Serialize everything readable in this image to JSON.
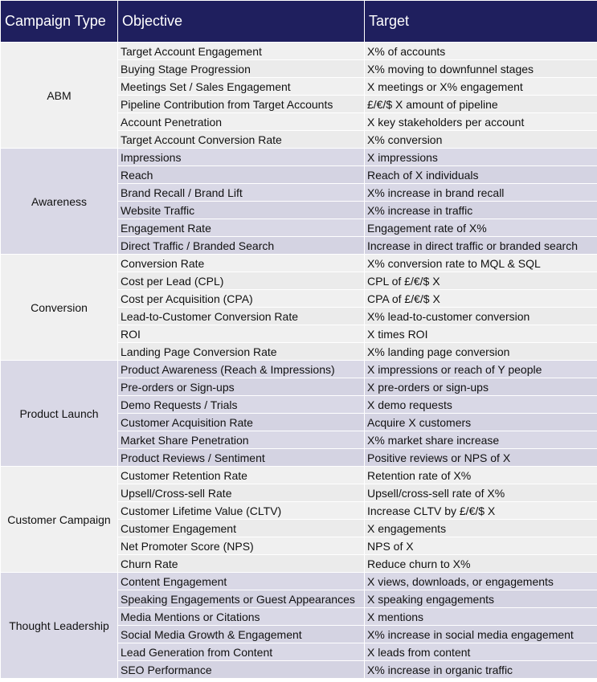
{
  "headers": {
    "type": "Campaign Type",
    "objective": "Objective",
    "target": "Target"
  },
  "groups": [
    {
      "type": "ABM",
      "rows": [
        {
          "objective": "Target Account Engagement",
          "target": "X% of accounts"
        },
        {
          "objective": "Buying Stage Progression",
          "target": "X% moving to downfunnel stages"
        },
        {
          "objective": "Meetings Set / Sales Engagement",
          "target": "X meetings or X% engagement"
        },
        {
          "objective": "Pipeline Contribution from Target Accounts",
          "target": "£/€/$ X amount of pipeline"
        },
        {
          "objective": "Account Penetration",
          "target": "X key stakeholders per account"
        },
        {
          "objective": "Target Account Conversion Rate",
          "target": "X% conversion"
        }
      ]
    },
    {
      "type": "Awareness",
      "rows": [
        {
          "objective": "Impressions",
          "target": "X impressions"
        },
        {
          "objective": "Reach",
          "target": "Reach of X individuals"
        },
        {
          "objective": "Brand Recall / Brand Lift",
          "target": "X% increase in brand recall"
        },
        {
          "objective": "Website Traffic",
          "target": "X% increase in traffic"
        },
        {
          "objective": "Engagement Rate",
          "target": "Engagement rate of X%"
        },
        {
          "objective": "Direct Traffic / Branded Search",
          "target": "Increase in direct traffic or branded search"
        }
      ]
    },
    {
      "type": "Conversion",
      "rows": [
        {
          "objective": "Conversion Rate",
          "target": "X% conversion rate to MQL & SQL"
        },
        {
          "objective": "Cost per Lead (CPL)",
          "target": "CPL of £/€/$ X"
        },
        {
          "objective": "Cost per Acquisition (CPA)",
          "target": "CPA of £/€/$ X"
        },
        {
          "objective": "Lead-to-Customer Conversion Rate",
          "target": "X% lead-to-customer conversion"
        },
        {
          "objective": "ROI",
          "target": "X times ROI"
        },
        {
          "objective": "Landing Page Conversion Rate",
          "target": "X% landing page conversion"
        }
      ]
    },
    {
      "type": "Product Launch",
      "rows": [
        {
          "objective": "Product Awareness (Reach & Impressions)",
          "target": "X impressions or reach of Y people"
        },
        {
          "objective": "Pre-orders or Sign-ups",
          "target": "X pre-orders or sign-ups"
        },
        {
          "objective": "Demo Requests / Trials",
          "target": "X demo requests"
        },
        {
          "objective": "Customer Acquisition Rate",
          "target": "Acquire X customers"
        },
        {
          "objective": "Market Share Penetration",
          "target": "X% market share increase"
        },
        {
          "objective": "Product Reviews / Sentiment",
          "target": "Positive reviews or NPS of X"
        }
      ]
    },
    {
      "type": "Customer Campaign",
      "rows": [
        {
          "objective": "Customer Retention Rate",
          "target": "Retention rate of X%"
        },
        {
          "objective": "Upsell/Cross-sell Rate",
          "target": "Upsell/cross-sell rate of X%"
        },
        {
          "objective": "Customer Lifetime Value (CLTV)",
          "target": "Increase CLTV by £/€/$ X"
        },
        {
          "objective": "Customer Engagement",
          "target": "X engagements"
        },
        {
          "objective": "Net Promoter Score (NPS)",
          "target": "NPS of X"
        },
        {
          "objective": "Churn Rate",
          "target": "Reduce churn to X%"
        }
      ]
    },
    {
      "type": "Thought Leadership",
      "rows": [
        {
          "objective": "Content Engagement",
          "target": "X views, downloads, or engagements"
        },
        {
          "objective": "Speaking Engagements or Guest Appearances",
          "target": "X speaking engagements"
        },
        {
          "objective": "Media Mentions or Citations",
          "target": "X mentions"
        },
        {
          "objective": "Social Media Growth & Engagement",
          "target": "X% increase in social media engagement"
        },
        {
          "objective": "Lead Generation from Content",
          "target": "X leads from content"
        },
        {
          "objective": "SEO Performance",
          "target": "X% increase in organic traffic"
        }
      ]
    }
  ]
}
